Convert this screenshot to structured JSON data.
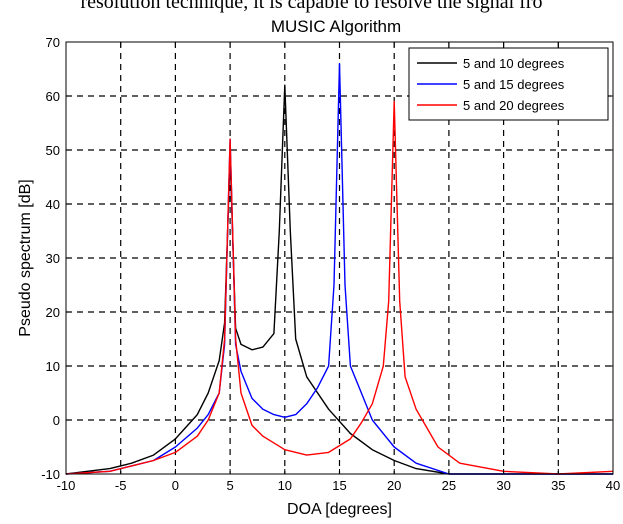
{
  "header_text": "resolution technique, it is capable to resolve the signal fro",
  "chart_data": {
    "type": "line",
    "title": "MUSIC Algorithm",
    "xlabel": "DOA [degrees]",
    "ylabel": "Pseudo spectrum [dB]",
    "xlim": [
      -10,
      40
    ],
    "ylim": [
      -10,
      70
    ],
    "xticks": [
      -10,
      -5,
      0,
      5,
      10,
      15,
      20,
      25,
      30,
      35,
      40
    ],
    "yticks": [
      -10,
      0,
      10,
      20,
      30,
      40,
      50,
      60,
      70
    ],
    "grid": true,
    "legend_position": "top-right",
    "series": [
      {
        "name": "5 and 10 degrees",
        "color": "#000000",
        "x": [
          -10,
          -6,
          -4,
          -2,
          0,
          2,
          3,
          4,
          4.5,
          5,
          5.5,
          6,
          7,
          8,
          9,
          9.5,
          10,
          10.5,
          11,
          12,
          14,
          16,
          18,
          20,
          22,
          25,
          30,
          35,
          40
        ],
        "y": [
          -10,
          -9,
          -8,
          -6.5,
          -3.5,
          1,
          5,
          11,
          18,
          49,
          17,
          14,
          13,
          13.5,
          16,
          35,
          62,
          35,
          15,
          8,
          2,
          -2.5,
          -5.5,
          -7.5,
          -9,
          -10,
          -10,
          -10,
          -10
        ]
      },
      {
        "name": "5 and 15 degrees",
        "color": "#0000ff",
        "x": [
          -10,
          -6,
          -4,
          -2,
          0,
          2,
          3,
          4,
          4.5,
          5,
          5.5,
          6,
          7,
          8,
          9,
          10,
          11,
          12,
          13,
          14,
          14.5,
          15,
          15.5,
          16,
          17,
          18,
          20,
          22,
          25,
          30,
          35,
          40
        ],
        "y": [
          -10,
          -9.5,
          -8.5,
          -7.5,
          -5,
          -1.5,
          1,
          5,
          14,
          52,
          14,
          9,
          4,
          2,
          1,
          0.5,
          1,
          3,
          6,
          10,
          25,
          66,
          25,
          10,
          5,
          0,
          -5,
          -8,
          -10,
          -10,
          -10,
          -10
        ],
        "note": ""
      },
      {
        "name": "5 and 20 degrees",
        "color": "#ff0000",
        "x": [
          -10,
          -6,
          -4,
          -2,
          0,
          2,
          3,
          4,
          4.5,
          5,
          5.5,
          6,
          7,
          8,
          10,
          12,
          14,
          16,
          17,
          18,
          19,
          19.5,
          20,
          20.5,
          21,
          22,
          24,
          26,
          30,
          35,
          40
        ],
        "y": [
          -10,
          -9.5,
          -8.5,
          -7.5,
          -6,
          -3,
          0,
          5,
          15,
          52,
          15,
          5,
          -1,
          -3,
          -5.5,
          -6.5,
          -6,
          -3.5,
          -0.5,
          3,
          10,
          22,
          59,
          22,
          8,
          2,
          -5,
          -8,
          -9.5,
          -10,
          -9.5
        ]
      }
    ]
  }
}
